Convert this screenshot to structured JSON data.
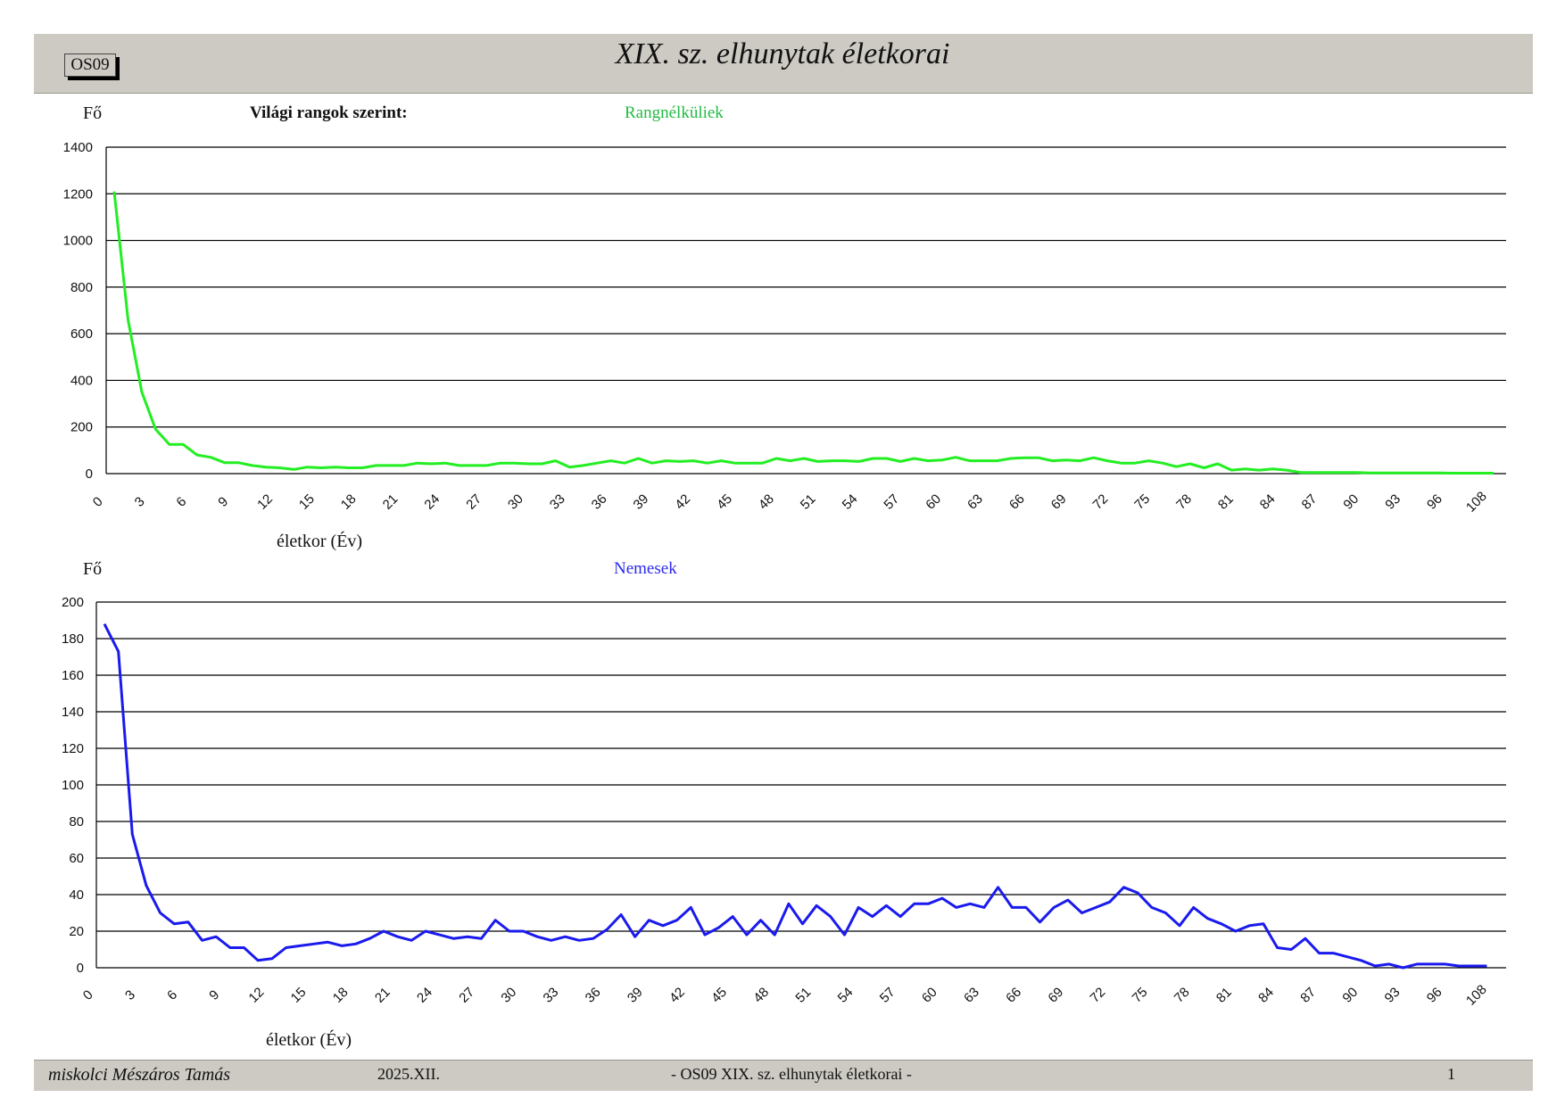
{
  "header": {
    "code": "OS09",
    "title": "XIX. sz. elhunytak életkorai"
  },
  "footer": {
    "author": "miskolci Mészáros Tamás",
    "date": "2025.XII.",
    "center": "- OS09  XIX. sz. elhunytak életkorai -",
    "page": "1"
  },
  "section_heading": "Világi rangok szerint:",
  "colors": {
    "commoners": "#22ee22",
    "nobles": "#1a1aee",
    "header_band": "#cdcac3"
  },
  "chart_data": [
    {
      "type": "line",
      "ylabel": "Fő",
      "xlabel": "életkor (Év)",
      "ylim": [
        0,
        1400
      ],
      "yticks": [
        "0",
        "200",
        "400",
        "600",
        "800",
        "1000",
        "1200",
        "1400"
      ],
      "xticks": [
        "0",
        "3",
        "6",
        "9",
        "12",
        "15",
        "18",
        "21",
        "24",
        "27",
        "30",
        "33",
        "36",
        "39",
        "42",
        "45",
        "48",
        "51",
        "54",
        "57",
        "60",
        "63",
        "66",
        "69",
        "72",
        "75",
        "78",
        "81",
        "84",
        "87",
        "90",
        "93",
        "96",
        "108"
      ],
      "grid": true,
      "series": [
        {
          "name": "Rangnélküliek",
          "color": "#22ee22",
          "values": [
            1210,
            660,
            350,
            190,
            125,
            125,
            80,
            70,
            47,
            47,
            35,
            28,
            25,
            18,
            28,
            25,
            28,
            25,
            25,
            35,
            35,
            35,
            45,
            42,
            45,
            35,
            35,
            35,
            45,
            45,
            42,
            42,
            55,
            28,
            35,
            45,
            55,
            45,
            65,
            45,
            55,
            52,
            55,
            45,
            55,
            45,
            45,
            45,
            65,
            55,
            65,
            52,
            55,
            55,
            52,
            65,
            65,
            52,
            65,
            55,
            58,
            70,
            55,
            55,
            55,
            65,
            68,
            68,
            55,
            58,
            55,
            68,
            55,
            45,
            45,
            55,
            45,
            30,
            42,
            25,
            42,
            15,
            20,
            15,
            20,
            15,
            5,
            5,
            5,
            5,
            5,
            3,
            3,
            3,
            3,
            3,
            3,
            2,
            2,
            2,
            2
          ]
        }
      ]
    },
    {
      "type": "line",
      "ylabel": "Fő",
      "xlabel": "életkor (Év)",
      "ylim": [
        0,
        200
      ],
      "yticks": [
        "0",
        "20",
        "40",
        "60",
        "80",
        "100",
        "120",
        "140",
        "160",
        "180",
        "200"
      ],
      "xticks": [
        "0",
        "3",
        "6",
        "9",
        "12",
        "15",
        "18",
        "21",
        "24",
        "27",
        "30",
        "33",
        "36",
        "39",
        "42",
        "45",
        "48",
        "51",
        "54",
        "57",
        "60",
        "63",
        "66",
        "69",
        "72",
        "75",
        "78",
        "81",
        "84",
        "87",
        "90",
        "93",
        "96",
        "108"
      ],
      "grid": true,
      "series": [
        {
          "name": "Nemesek",
          "color": "#1a1aee",
          "values": [
            188,
            173,
            73,
            45,
            30,
            24,
            25,
            15,
            17,
            11,
            11,
            4,
            5,
            11,
            12,
            13,
            14,
            12,
            13,
            16,
            20,
            17,
            15,
            20,
            18,
            16,
            17,
            16,
            26,
            20,
            20,
            17,
            15,
            17,
            15,
            16,
            21,
            29,
            17,
            26,
            23,
            26,
            33,
            18,
            22,
            28,
            18,
            26,
            18,
            35,
            24,
            34,
            28,
            18,
            33,
            28,
            34,
            28,
            35,
            35,
            38,
            33,
            35,
            33,
            44,
            33,
            33,
            25,
            33,
            37,
            30,
            33,
            36,
            44,
            41,
            33,
            30,
            23,
            33,
            27,
            24,
            20,
            23,
            24,
            11,
            10,
            16,
            8,
            8,
            6,
            4,
            1,
            2,
            0,
            2,
            2,
            2,
            1,
            1,
            1
          ]
        }
      ]
    }
  ]
}
